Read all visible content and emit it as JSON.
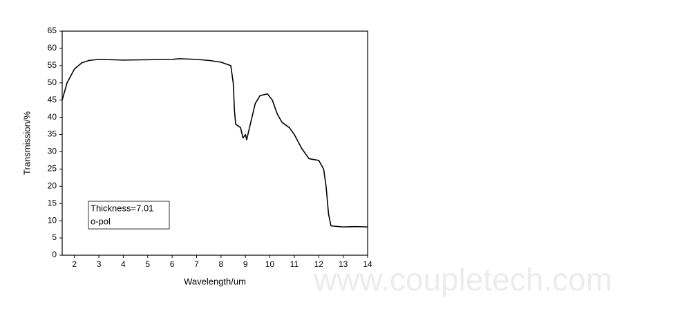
{
  "chart_data": {
    "type": "line",
    "xlabel": "Wavelength/um",
    "ylabel": "Transmission/%",
    "annotation": [
      "Thickness=7.01",
      "o-pol"
    ],
    "watermark": "www.coupletech.com",
    "color": "#000000",
    "x": [
      1.5,
      1.7,
      2,
      2.3,
      2.6,
      3,
      4,
      5,
      6,
      6.3,
      7,
      7.5,
      8,
      8.4,
      8.5,
      8.55,
      8.6,
      8.7,
      8.8,
      8.9,
      9.0,
      9.05,
      9.2,
      9.4,
      9.6,
      9.9,
      10.1,
      10.3,
      10.5,
      10.8,
      11.0,
      11.3,
      11.6,
      12.0,
      12.2,
      12.3,
      12.4,
      12.5,
      13,
      13.5,
      14
    ],
    "values": [
      45,
      50,
      54,
      55.8,
      56.5,
      56.8,
      56.6,
      56.7,
      56.8,
      57,
      56.8,
      56.5,
      56,
      55,
      50,
      42,
      38,
      37.5,
      37,
      34,
      35,
      33.5,
      38,
      44,
      46.3,
      46.8,
      45,
      41,
      38.5,
      37,
      35,
      31,
      28,
      27.5,
      25,
      20,
      12,
      8.5,
      8.2,
      8.3,
      8.2
    ],
    "xlim": [
      1.5,
      14
    ],
    "ylim": [
      0,
      65
    ],
    "xticks": [
      2,
      3,
      4,
      5,
      6,
      7,
      8,
      9,
      10,
      11,
      12,
      13,
      14
    ],
    "yticks": [
      0,
      5,
      10,
      15,
      20,
      25,
      30,
      35,
      40,
      45,
      50,
      55,
      60,
      65
    ]
  }
}
